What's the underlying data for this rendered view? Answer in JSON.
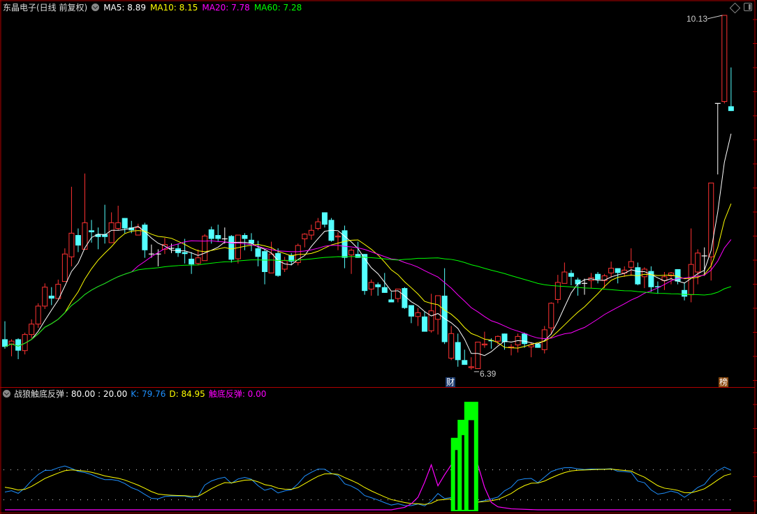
{
  "header": {
    "title": "东晶电子(日线 前复权)",
    "ma5": "MA5: 8.89",
    "ma10": "MA10: 8.15",
    "ma20": "MA20: 7.78",
    "ma60": "MA60: 7.28"
  },
  "indicator_header": {
    "name": "战狼触底反弹",
    "params": ": 80.00 : 20.00",
    "k": "K: 79.76",
    "d": "D: 84.95",
    "signal": "触底反弹: 0.00"
  },
  "markers": {
    "high_label": "10.13",
    "low_label": "6.39",
    "cai_tag": "财",
    "bang_tag": "榜"
  },
  "icons": {
    "top_right": [
      "diamond-icon",
      "panel-toggle-icon"
    ],
    "dropdown": "chevron-down-icon"
  },
  "colors": {
    "up": "#ff3232",
    "down": "#54ffff",
    "doji": "#ffffff",
    "ma5": "#ffffff",
    "ma10": "#ffff00",
    "ma20": "#ff00ff",
    "ma60": "#00ff00",
    "k": "#1e90ff",
    "d": "#ffff00",
    "signal": "#ff00ff",
    "signal_bar": "#00ff00",
    "border": "#b00000"
  },
  "chart_data": [
    {
      "type": "candlestick",
      "title": "东晶电子(日线 前复权)",
      "ohlc_format": [
        "open",
        "close",
        "high",
        "low"
      ],
      "price_range": [
        6.39,
        10.13
      ],
      "ma_periods": [
        5,
        10,
        20,
        60
      ],
      "candles": [
        [
          6.71,
          6.63,
          6.9,
          6.61
        ],
        [
          6.66,
          6.69,
          6.71,
          6.53
        ],
        [
          6.71,
          6.59,
          6.72,
          6.5
        ],
        [
          6.59,
          6.76,
          6.78,
          6.55
        ],
        [
          6.76,
          6.87,
          6.92,
          6.72
        ],
        [
          6.87,
          7.06,
          7.09,
          6.83
        ],
        [
          7.06,
          7.26,
          7.3,
          7.03
        ],
        [
          7.17,
          7.14,
          7.26,
          7.07
        ],
        [
          7.14,
          7.29,
          7.34,
          7.14
        ],
        [
          7.32,
          7.61,
          7.67,
          7.32
        ],
        [
          7.58,
          7.83,
          8.32,
          7.48
        ],
        [
          7.81,
          7.7,
          7.88,
          7.63
        ],
        [
          7.66,
          7.94,
          8.46,
          7.66
        ],
        [
          7.86,
          7.84,
          7.97,
          7.73
        ],
        [
          7.82,
          7.79,
          7.89,
          7.66
        ],
        [
          7.82,
          7.79,
          8.13,
          7.72
        ],
        [
          7.73,
          7.94,
          8.05,
          7.73
        ],
        [
          7.88,
          7.94,
          8.12,
          7.86
        ],
        [
          7.99,
          7.88,
          7.99,
          7.83
        ],
        [
          7.89,
          7.86,
          7.96,
          7.83
        ],
        [
          7.81,
          7.89,
          7.93,
          7.81
        ],
        [
          7.92,
          7.65,
          7.94,
          7.57
        ],
        [
          7.61,
          7.61,
          7.71,
          7.57
        ],
        [
          7.61,
          7.61,
          7.66,
          7.48
        ],
        [
          7.66,
          7.71,
          7.78,
          7.61
        ],
        [
          7.67,
          7.67,
          7.72,
          7.62
        ],
        [
          7.67,
          7.62,
          7.72,
          7.58
        ],
        [
          7.63,
          7.61,
          7.77,
          7.51
        ],
        [
          7.56,
          7.5,
          7.63,
          7.4
        ],
        [
          7.51,
          7.57,
          7.66,
          7.49
        ],
        [
          7.54,
          7.8,
          7.82,
          7.54
        ],
        [
          7.87,
          7.77,
          7.9,
          7.72
        ],
        [
          7.81,
          7.77,
          7.92,
          7.74
        ],
        [
          7.77,
          7.77,
          7.89,
          7.72
        ],
        [
          7.8,
          7.55,
          7.81,
          7.52
        ],
        [
          7.56,
          7.81,
          7.81,
          7.51
        ],
        [
          7.81,
          7.77,
          7.83,
          7.65
        ],
        [
          7.76,
          7.72,
          7.83,
          7.64
        ],
        [
          7.67,
          7.58,
          7.75,
          7.48
        ],
        [
          7.64,
          7.42,
          7.66,
          7.29
        ],
        [
          7.41,
          7.61,
          7.74,
          7.41
        ],
        [
          7.62,
          7.38,
          7.67,
          7.37
        ],
        [
          7.45,
          7.54,
          7.58,
          7.42
        ],
        [
          7.6,
          7.53,
          7.62,
          7.49
        ],
        [
          7.52,
          7.7,
          7.72,
          7.49
        ],
        [
          7.77,
          7.82,
          7.83,
          7.68
        ],
        [
          7.81,
          7.86,
          7.92,
          7.76
        ],
        [
          7.88,
          7.95,
          7.99,
          7.86
        ],
        [
          8.05,
          7.92,
          8.05,
          7.89
        ],
        [
          7.97,
          7.75,
          7.99,
          7.74
        ],
        [
          7.79,
          7.8,
          7.84,
          7.65
        ],
        [
          7.86,
          7.57,
          7.91,
          7.46
        ],
        [
          7.6,
          7.65,
          7.67,
          7.4
        ],
        [
          7.61,
          7.57,
          7.74,
          7.57
        ],
        [
          7.61,
          7.22,
          7.61,
          7.18
        ],
        [
          7.24,
          7.31,
          7.34,
          7.17
        ],
        [
          7.29,
          7.26,
          7.31,
          7.17
        ],
        [
          7.26,
          7.2,
          7.41,
          7.2
        ],
        [
          7.13,
          7.1,
          7.21,
          7.1
        ],
        [
          7.14,
          7.24,
          7.24,
          7.1
        ],
        [
          7.25,
          7.04,
          7.26,
          7.03
        ],
        [
          7.07,
          6.95,
          7.07,
          6.88
        ],
        [
          6.95,
          6.99,
          7.04,
          6.85
        ],
        [
          6.95,
          6.79,
          7.0,
          6.79
        ],
        [
          6.8,
          7.01,
          7.19,
          6.78
        ],
        [
          6.92,
          7.17,
          7.17,
          6.76
        ],
        [
          7.17,
          6.68,
          7.46,
          6.66
        ],
        [
          6.51,
          6.77,
          6.85,
          6.49
        ],
        [
          6.68,
          6.49,
          6.77,
          6.42
        ],
        [
          6.49,
          6.44,
          6.6,
          6.44
        ],
        [
          6.41,
          6.42,
          6.52,
          6.39
        ],
        [
          6.4,
          6.68,
          6.68,
          6.4
        ],
        [
          6.65,
          6.66,
          6.79,
          6.62
        ],
        [
          6.7,
          6.69,
          6.72,
          6.61
        ],
        [
          6.69,
          6.74,
          6.75,
          6.65
        ],
        [
          6.77,
          6.68,
          6.77,
          6.6
        ],
        [
          6.62,
          6.63,
          6.66,
          6.54
        ],
        [
          6.65,
          6.74,
          6.77,
          6.57
        ],
        [
          6.77,
          6.66,
          6.78,
          6.62
        ],
        [
          6.63,
          6.65,
          6.68,
          6.52
        ],
        [
          6.66,
          6.62,
          6.67,
          6.62
        ],
        [
          6.6,
          6.81,
          6.85,
          6.56
        ],
        [
          6.83,
          7.09,
          7.1,
          6.76
        ],
        [
          7.13,
          7.31,
          7.39,
          7.09
        ],
        [
          7.3,
          7.42,
          7.52,
          7.3
        ],
        [
          7.41,
          7.37,
          7.44,
          7.28
        ],
        [
          7.34,
          7.29,
          7.36,
          7.17
        ],
        [
          7.3,
          7.3,
          7.35,
          7.18
        ],
        [
          7.33,
          7.36,
          7.41,
          7.25
        ],
        [
          7.4,
          7.34,
          7.42,
          7.3
        ],
        [
          7.33,
          7.38,
          7.4,
          7.25
        ],
        [
          7.41,
          7.46,
          7.53,
          7.36
        ],
        [
          7.46,
          7.41,
          7.46,
          7.3
        ],
        [
          7.41,
          7.44,
          7.48,
          7.37
        ],
        [
          7.47,
          7.53,
          7.67,
          7.38
        ],
        [
          7.47,
          7.29,
          7.52,
          7.28
        ],
        [
          7.37,
          7.45,
          7.47,
          7.25
        ],
        [
          7.43,
          7.26,
          7.48,
          7.21
        ],
        [
          7.27,
          7.26,
          7.32,
          7.19
        ],
        [
          7.33,
          7.37,
          7.42,
          7.23
        ],
        [
          7.38,
          7.41,
          7.42,
          7.29
        ],
        [
          7.45,
          7.32,
          7.45,
          7.29
        ],
        [
          7.23,
          7.16,
          7.31,
          7.12
        ],
        [
          7.18,
          7.5,
          7.88,
          7.1
        ],
        [
          7.42,
          7.62,
          7.66,
          7.29
        ],
        [
          7.59,
          7.59,
          7.68,
          7.38
        ],
        [
          7.58,
          8.36,
          8.36,
          7.33
        ],
        [
          9.2,
          9.2,
          9.2,
          8.45
        ],
        [
          9.22,
          10.13,
          10.13,
          9.2
        ],
        [
          9.17,
          9.12,
          9.58,
          9.12
        ]
      ],
      "high_marker": {
        "index": 108,
        "price": 10.13
      },
      "low_marker": {
        "index": 70,
        "price": 6.39
      },
      "event_tags": [
        {
          "index": 66,
          "text": "财"
        },
        {
          "index": 108,
          "text": "榜"
        }
      ]
    },
    {
      "type": "line",
      "name": "战狼触底反弹",
      "ylim": [
        0,
        100
      ],
      "reference_lines": [
        80,
        20
      ],
      "kd_period": 9,
      "signal_points": [
        [
          0,
          0
        ],
        [
          58,
          0
        ],
        [
          60,
          5
        ],
        [
          61,
          12
        ],
        [
          62,
          25
        ],
        [
          63,
          55
        ],
        [
          64,
          90
        ],
        [
          65,
          48
        ],
        [
          66,
          70
        ],
        [
          67,
          90
        ],
        [
          71,
          90
        ],
        [
          72,
          45
        ],
        [
          73,
          15
        ],
        [
          74,
          6
        ],
        [
          76,
          2
        ],
        [
          80,
          0
        ],
        [
          109,
          0
        ]
      ],
      "signal_bars": [
        {
          "index": 68,
          "value": 144
        },
        {
          "index": 69,
          "value": 180
        },
        {
          "index": 70,
          "value": 216
        }
      ]
    }
  ]
}
